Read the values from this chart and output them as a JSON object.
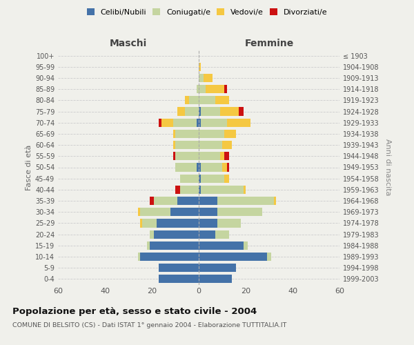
{
  "age_groups": [
    "0-4",
    "5-9",
    "10-14",
    "15-19",
    "20-24",
    "25-29",
    "30-34",
    "35-39",
    "40-44",
    "45-49",
    "50-54",
    "55-59",
    "60-64",
    "65-69",
    "70-74",
    "75-79",
    "80-84",
    "85-89",
    "90-94",
    "95-99",
    "100+"
  ],
  "birth_years": [
    "1999-2003",
    "1994-1998",
    "1989-1993",
    "1984-1988",
    "1979-1983",
    "1974-1978",
    "1969-1973",
    "1964-1968",
    "1959-1963",
    "1954-1958",
    "1949-1953",
    "1944-1948",
    "1939-1943",
    "1934-1938",
    "1929-1933",
    "1924-1928",
    "1919-1923",
    "1914-1918",
    "1909-1913",
    "1904-1908",
    "≤ 1903"
  ],
  "maschi": {
    "celibi": [
      17,
      17,
      25,
      21,
      19,
      18,
      12,
      9,
      0,
      0,
      1,
      0,
      0,
      0,
      1,
      0,
      0,
      0,
      0,
      0,
      0
    ],
    "coniugati": [
      0,
      0,
      1,
      1,
      2,
      6,
      13,
      10,
      8,
      8,
      9,
      10,
      10,
      10,
      10,
      6,
      4,
      1,
      0,
      0,
      0
    ],
    "vedovi": [
      0,
      0,
      0,
      0,
      0,
      1,
      1,
      0,
      0,
      0,
      0,
      0,
      1,
      1,
      5,
      3,
      2,
      0,
      0,
      0,
      0
    ],
    "divorziati": [
      0,
      0,
      0,
      0,
      0,
      0,
      0,
      2,
      2,
      0,
      0,
      1,
      0,
      0,
      1,
      0,
      0,
      0,
      0,
      0,
      0
    ]
  },
  "femmine": {
    "celibi": [
      14,
      16,
      29,
      19,
      7,
      8,
      8,
      8,
      1,
      1,
      1,
      0,
      0,
      0,
      1,
      1,
      0,
      0,
      0,
      0,
      0
    ],
    "coniugati": [
      0,
      0,
      2,
      2,
      6,
      10,
      19,
      24,
      18,
      10,
      9,
      9,
      10,
      11,
      11,
      8,
      7,
      3,
      2,
      0,
      0
    ],
    "vedovi": [
      0,
      0,
      0,
      0,
      0,
      0,
      0,
      1,
      1,
      2,
      2,
      2,
      4,
      5,
      10,
      8,
      6,
      8,
      4,
      1,
      0
    ],
    "divorziati": [
      0,
      0,
      0,
      0,
      0,
      0,
      0,
      0,
      0,
      0,
      1,
      2,
      0,
      0,
      0,
      2,
      0,
      1,
      0,
      0,
      0
    ]
  },
  "colors": {
    "celibi": "#4472a8",
    "coniugati": "#c5d5a0",
    "vedovi": "#f5c842",
    "divorziati": "#cc1111"
  },
  "xlim": 60,
  "title": "Popolazione per età, sesso e stato civile - 2004",
  "subtitle": "COMUNE DI BELSITO (CS) - Dati ISTAT 1° gennaio 2004 - Elaborazione TUTTITALIA.IT",
  "ylabel_left": "Fasce di età",
  "ylabel_right": "Anni di nascita",
  "xlabel_left": "Maschi",
  "xlabel_right": "Femmine",
  "bg_color": "#f0f0eb",
  "grid_color": "#cccccc"
}
